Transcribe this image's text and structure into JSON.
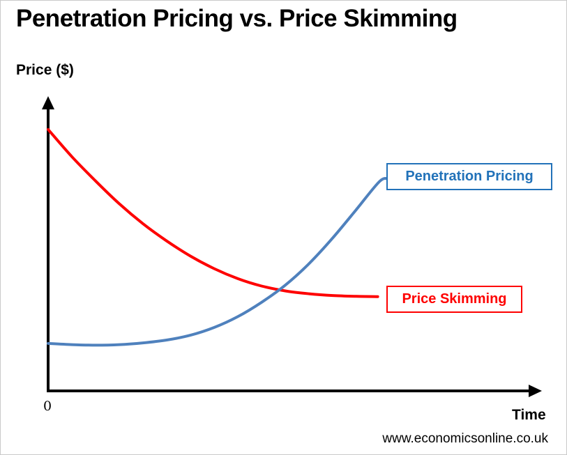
{
  "title": "Penetration Pricing vs. Price Skimming",
  "axes": {
    "y_label": "Price ($)",
    "x_label": "Time",
    "origin_label": "0"
  },
  "labels": {
    "penetration": "Penetration Pricing",
    "skimming": "Price Skimming"
  },
  "footer": "www.economicsonline.co.uk",
  "colors": {
    "penetration_line": "#4f81bd",
    "skimming_line": "#fe0000",
    "axis": "#000000"
  },
  "chart_data": {
    "type": "line",
    "title": "Penetration Pricing vs. Price Skimming",
    "xlabel": "Time",
    "ylabel": "Price ($)",
    "xlim": [
      0,
      10
    ],
    "ylim": [
      0,
      10
    ],
    "grid": false,
    "legend_position": "inline-boxes",
    "series": [
      {
        "name": "Price Skimming",
        "color": "#fe0000",
        "x": [
          0,
          0.5,
          1,
          1.5,
          2,
          2.5,
          3,
          3.5,
          4,
          4.5,
          5,
          5.5,
          6,
          6.5,
          6.95
        ],
        "y": [
          9.15,
          8.2,
          7.35,
          6.55,
          5.85,
          5.25,
          4.72,
          4.28,
          3.93,
          3.67,
          3.5,
          3.4,
          3.34,
          3.31,
          3.3
        ]
      },
      {
        "name": "Penetration Pricing",
        "color": "#4f81bd",
        "x": [
          0,
          0.5,
          1,
          1.5,
          2,
          2.5,
          3,
          3.5,
          4,
          4.5,
          5,
          5.5,
          6,
          6.5,
          7,
          7.2
        ],
        "y": [
          1.66,
          1.62,
          1.6,
          1.62,
          1.68,
          1.78,
          1.95,
          2.22,
          2.6,
          3.1,
          3.7,
          4.45,
          5.35,
          6.35,
          7.35,
          7.4
        ]
      }
    ]
  }
}
